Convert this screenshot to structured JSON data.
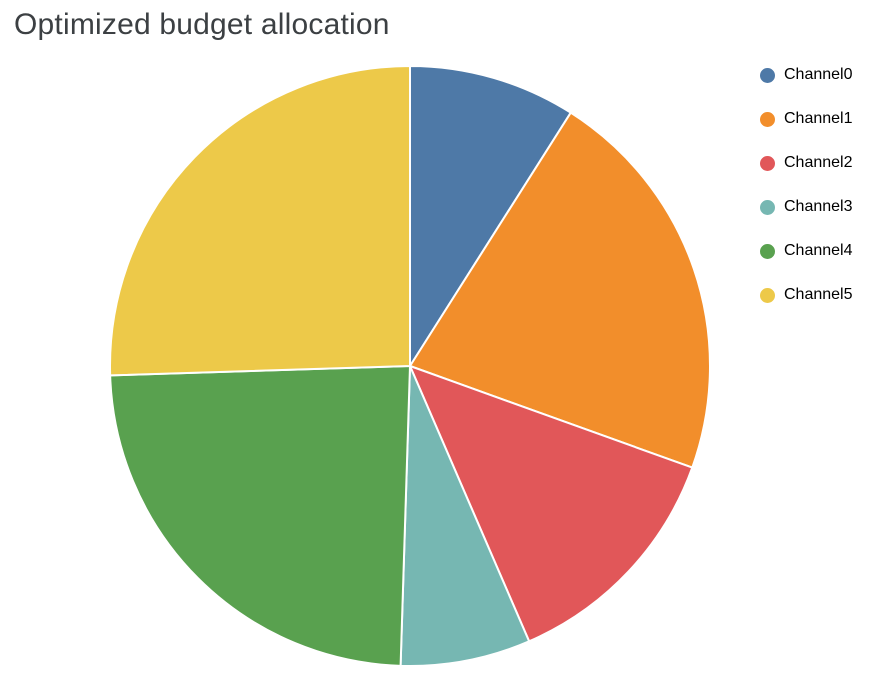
{
  "title": "Optimized budget allocation",
  "chart_data": {
    "type": "pie",
    "title": "Optimized budget allocation",
    "categories": [
      "Channel0",
      "Channel1",
      "Channel2",
      "Channel3",
      "Channel4",
      "Channel5"
    ],
    "values": [
      9,
      21.5,
      13,
      7,
      24,
      25.5
    ],
    "unit": "percent_of_total",
    "colors": [
      "#4e79a7",
      "#f28e2b",
      "#e15759",
      "#76b7b2",
      "#59a14f",
      "#edc949"
    ],
    "legend_position": "right",
    "legend_marker": "circle",
    "start_angle_deg": 0,
    "direction": "clockwise",
    "slice_border_color": "#ffffff"
  }
}
